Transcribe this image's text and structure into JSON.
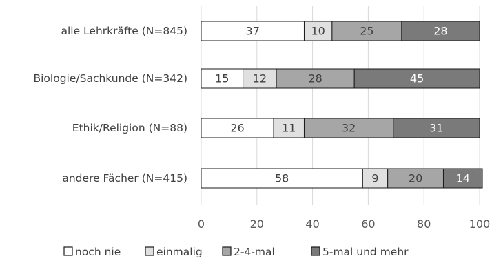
{
  "chart_data": {
    "type": "bar",
    "orientation": "horizontal",
    "stacked": true,
    "categories": [
      "alle Lehrkräfte (N=845)",
      "Biologie/Sachkunde (N=342)",
      "Ethik/Religion (N=88)",
      "andere Fächer (N=415)"
    ],
    "series": [
      {
        "name": "noch nie",
        "values": [
          37,
          15,
          26,
          58
        ],
        "color": "#ffffff",
        "text_color": "#404040"
      },
      {
        "name": "einmalig",
        "values": [
          10,
          12,
          11,
          9
        ],
        "color": "#e0e0e0",
        "text_color": "#404040"
      },
      {
        "name": "2-4-mal",
        "values": [
          25,
          28,
          32,
          20
        ],
        "color": "#a6a6a6",
        "text_color": "#404040"
      },
      {
        "name": "5-mal und mehr",
        "values": [
          28,
          45,
          31,
          14
        ],
        "color": "#7a7a7a",
        "text_color": "#ffffff"
      }
    ],
    "xlim": [
      0,
      100
    ],
    "xticks": [
      0,
      20,
      40,
      60,
      80,
      100
    ],
    "grid": true,
    "legend_position": "bottom",
    "title": "",
    "xlabel": "",
    "ylabel": ""
  }
}
